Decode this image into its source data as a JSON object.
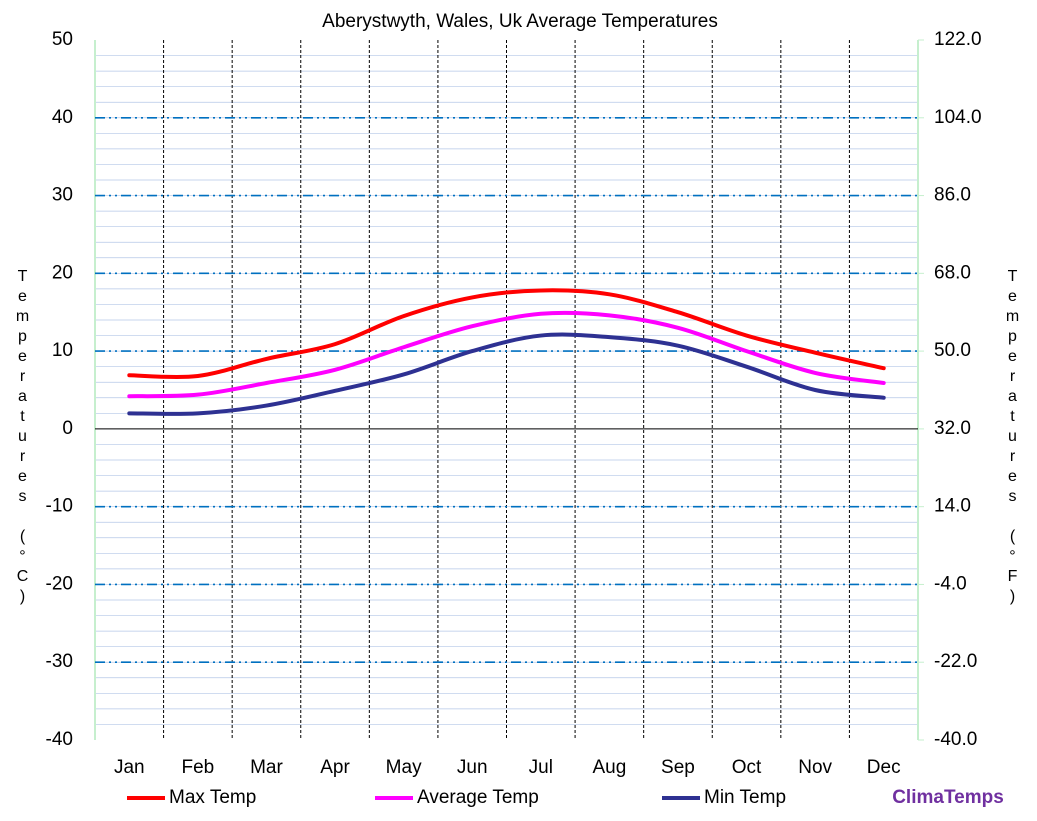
{
  "chart_data": {
    "type": "line",
    "title": "Aberystwyth, Wales, Uk Average Temperatures",
    "y_label": "Temperatures (°C)",
    "y2_label": "Temperatures (°F)",
    "brand": "ClimaTemps",
    "categories": [
      "Jan",
      "Feb",
      "Mar",
      "Apr",
      "May",
      "Jun",
      "Jul",
      "Aug",
      "Sep",
      "Oct",
      "Nov",
      "Dec"
    ],
    "series": [
      {
        "name": "Max Temp",
        "color": "#ff0000",
        "values": [
          6.9,
          6.8,
          9.0,
          10.9,
          14.5,
          16.9,
          17.8,
          17.3,
          15.0,
          12.0,
          9.8,
          7.8
        ]
      },
      {
        "name": "Average Temp",
        "color": "#ff00ff",
        "values": [
          4.2,
          4.4,
          5.9,
          7.6,
          10.5,
          13.2,
          14.8,
          14.6,
          13.0,
          10.0,
          7.2,
          5.9
        ]
      },
      {
        "name": "Min Temp",
        "color": "#2e3192",
        "values": [
          2.0,
          2.0,
          3.0,
          4.9,
          7.0,
          10.0,
          12.0,
          11.8,
          10.7,
          8.0,
          5.0,
          4.0
        ]
      }
    ],
    "ylim": [
      -40,
      50
    ],
    "yticks": [
      -40,
      -30,
      -20,
      -10,
      0,
      10,
      20,
      30,
      40,
      50
    ],
    "y2lim": [
      -40,
      122
    ],
    "y2ticks": [
      {
        "value": -40,
        "label": "-40.0"
      },
      {
        "value": -22,
        "label": "-22.0"
      },
      {
        "value": -4,
        "label": "-4.0"
      },
      {
        "value": 14,
        "label": "14.0"
      },
      {
        "value": 32,
        "label": "32.0"
      },
      {
        "value": 50,
        "label": "50.0"
      },
      {
        "value": 68,
        "label": "68.0"
      },
      {
        "value": 86,
        "label": "86.0"
      },
      {
        "value": 104,
        "label": "104.0"
      },
      {
        "value": 122,
        "label": "122.0"
      }
    ],
    "grid": true
  }
}
